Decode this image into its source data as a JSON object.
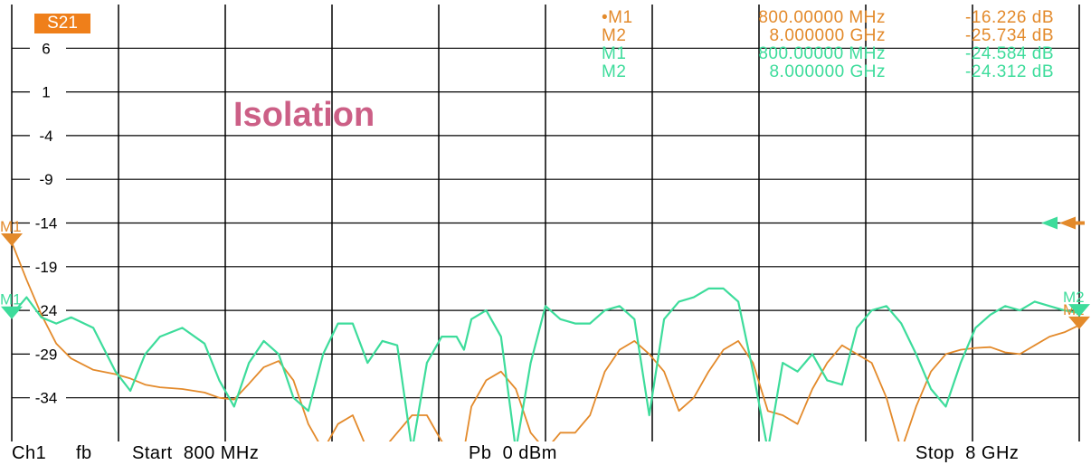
{
  "header": {
    "trace_badge": "S21"
  },
  "overlay_label": "Isolation",
  "marker_table": {
    "orange": [
      {
        "name": "•M1",
        "freq": "800.00000 MHz",
        "value": "-16.226 dB"
      },
      {
        "name": "M2",
        "freq": "8.000000 GHz",
        "value": "-25.734 dB"
      }
    ],
    "green": [
      {
        "name": "M1",
        "freq": "800.00000 MHz",
        "value": "-24.584 dB"
      },
      {
        "name": "M2",
        "freq": "8.000000 GHz",
        "value": "-24.312 dB"
      }
    ]
  },
  "footer": {
    "channel": "Ch1",
    "mode": "fb",
    "start": "Start  800 MHz",
    "power": "Pb  0 dBm",
    "stop": "Stop  8 GHz"
  },
  "colors": {
    "orange_trace": "#e38a2b",
    "green_trace": "#3ddc9b",
    "label": "#cc5f86",
    "grid": "#000000",
    "badge": "#ef7f1a"
  },
  "chart_data": {
    "type": "line",
    "title": "",
    "xlabel": "",
    "ylabel": "",
    "x_unit": "GHz",
    "y_unit": "dB",
    "xlim": [
      0.8,
      8.0
    ],
    "ylim": [
      -39,
      11
    ],
    "yticks": [
      6,
      1,
      -4,
      -9,
      -14,
      -19,
      -24,
      -29,
      -34
    ],
    "grid": true,
    "legend": "none",
    "reference_level": -14,
    "series": [
      {
        "color": "#e38a2b",
        "x": [
          0.8,
          0.9,
          1.0,
          1.1,
          1.2,
          1.35,
          1.5,
          1.6,
          1.7,
          1.8,
          1.95,
          2.1,
          2.2,
          2.3,
          2.4,
          2.5,
          2.6,
          2.7,
          2.8,
          2.9,
          3.0,
          3.1,
          3.2,
          3.3,
          3.4,
          3.5,
          3.6,
          3.7,
          3.8,
          3.85,
          3.9,
          4.0,
          4.1,
          4.2,
          4.3,
          4.4,
          4.5,
          4.6,
          4.7,
          4.8,
          4.9,
          5.0,
          5.1,
          5.2,
          5.3,
          5.4,
          5.5,
          5.6,
          5.7,
          5.8,
          5.9,
          6.0,
          6.1,
          6.2,
          6.3,
          6.4,
          6.5,
          6.6,
          6.7,
          6.8,
          6.9,
          7.0,
          7.1,
          7.2,
          7.3,
          7.4,
          7.5,
          7.6,
          7.7,
          7.8,
          7.9,
          8.0
        ],
        "y": [
          -16.2,
          -20.5,
          -24.5,
          -27.8,
          -29.5,
          -30.8,
          -31.3,
          -31.8,
          -32.5,
          -32.8,
          -33,
          -33.4,
          -34,
          -34.2,
          -32.4,
          -30.5,
          -29.8,
          -32,
          -37,
          -40,
          -37,
          -36,
          -40,
          -40,
          -38,
          -36,
          -36,
          -39,
          -40,
          -40,
          -35,
          -32,
          -31,
          -33,
          -38,
          -40,
          -38,
          -38,
          -36,
          -31,
          -28.5,
          -27.5,
          -29,
          -31,
          -35.5,
          -34,
          -31,
          -28.5,
          -27.5,
          -30,
          -35.5,
          -36,
          -37,
          -33,
          -30,
          -28,
          -29,
          -30,
          -34,
          -40,
          -35,
          -31,
          -29,
          -28.5,
          -28.3,
          -28.2,
          -28.8,
          -29,
          -28,
          -27,
          -26.5,
          -25.7
        ]
      },
      {
        "color": "#3ddc9b",
        "x": [
          0.8,
          0.9,
          1.0,
          1.1,
          1.2,
          1.35,
          1.5,
          1.6,
          1.7,
          1.8,
          1.95,
          2.1,
          2.2,
          2.3,
          2.4,
          2.5,
          2.6,
          2.7,
          2.8,
          2.9,
          3.0,
          3.1,
          3.2,
          3.3,
          3.4,
          3.5,
          3.6,
          3.7,
          3.8,
          3.85,
          3.9,
          4.0,
          4.1,
          4.2,
          4.3,
          4.4,
          4.5,
          4.6,
          4.7,
          4.8,
          4.9,
          5.0,
          5.1,
          5.2,
          5.3,
          5.4,
          5.5,
          5.6,
          5.7,
          5.8,
          5.9,
          6.0,
          6.1,
          6.2,
          6.3,
          6.4,
          6.5,
          6.6,
          6.7,
          6.8,
          6.9,
          7.0,
          7.1,
          7.2,
          7.3,
          7.4,
          7.5,
          7.6,
          7.7,
          7.8,
          7.9,
          8.0
        ],
        "y": [
          -24.5,
          -22.5,
          -24.8,
          -25.5,
          -24.8,
          -26,
          -31,
          -33.2,
          -29,
          -27,
          -26,
          -27.8,
          -32,
          -35,
          -30,
          -27.5,
          -29,
          -34,
          -35.5,
          -29,
          -25.5,
          -25.5,
          -30,
          -27.5,
          -28,
          -40,
          -30,
          -27,
          -27,
          -28.5,
          -25,
          -24,
          -27,
          -40,
          -30,
          -23.5,
          -25,
          -25.5,
          -25.5,
          -24,
          -23.5,
          -25,
          -36,
          -25,
          -23,
          -22.5,
          -21.5,
          -21.5,
          -23,
          -31,
          -40,
          -30,
          -31,
          -29,
          -32,
          -32.5,
          -26,
          -24,
          -23.5,
          -25.5,
          -29,
          -33,
          -35,
          -30,
          -26,
          -24.5,
          -23.5,
          -24,
          -23,
          -23.5,
          -24,
          -24.3
        ]
      }
    ],
    "markers": [
      {
        "series": 0,
        "name": "M1",
        "x": 0.8,
        "y": -16.226
      },
      {
        "series": 0,
        "name": "M2",
        "x": 8.0,
        "y": -25.734
      },
      {
        "series": 1,
        "name": "M1",
        "x": 0.8,
        "y": -24.584
      },
      {
        "series": 1,
        "name": "M2",
        "x": 8.0,
        "y": -24.312
      }
    ]
  }
}
